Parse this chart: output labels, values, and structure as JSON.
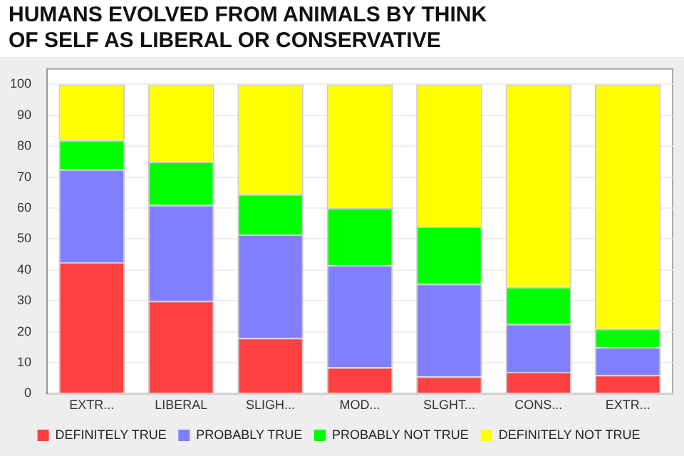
{
  "chart_data": {
    "type": "bar",
    "title": "HUMANS EVOLVED FROM ANIMALS BY THINK OF SELF AS LIBERAL OR CONSERVATIVE",
    "categories": [
      "EXTR...",
      "LIBERAL",
      "SLIGH...",
      "MOD...",
      "SLGHT...",
      "CONS...",
      "EXTR..."
    ],
    "stacked": true,
    "series": [
      {
        "name": "DEFINITELY TRUE",
        "color": "#ff4040",
        "values": [
          42.5,
          30,
          18,
          8.5,
          5.5,
          7,
          6
        ]
      },
      {
        "name": "PROBABLY TRUE",
        "color": "#8080ff",
        "values": [
          30,
          31,
          33.5,
          33,
          30,
          15.5,
          9
        ]
      },
      {
        "name": "PROBABLY NOT TRUE",
        "color": "#00ff00",
        "values": [
          9.5,
          14,
          13,
          18.5,
          18.5,
          12,
          6
        ]
      },
      {
        "name": "DEFINITELY NOT TRUE",
        "color": "#ffff00",
        "values": [
          18,
          25,
          35.5,
          40,
          46,
          65.5,
          79
        ]
      }
    ],
    "ylim": [
      0,
      105
    ],
    "yticks": [
      0,
      10,
      20,
      30,
      40,
      50,
      60,
      70,
      80,
      90,
      100
    ],
    "grid": "y",
    "legend": "bottom"
  }
}
